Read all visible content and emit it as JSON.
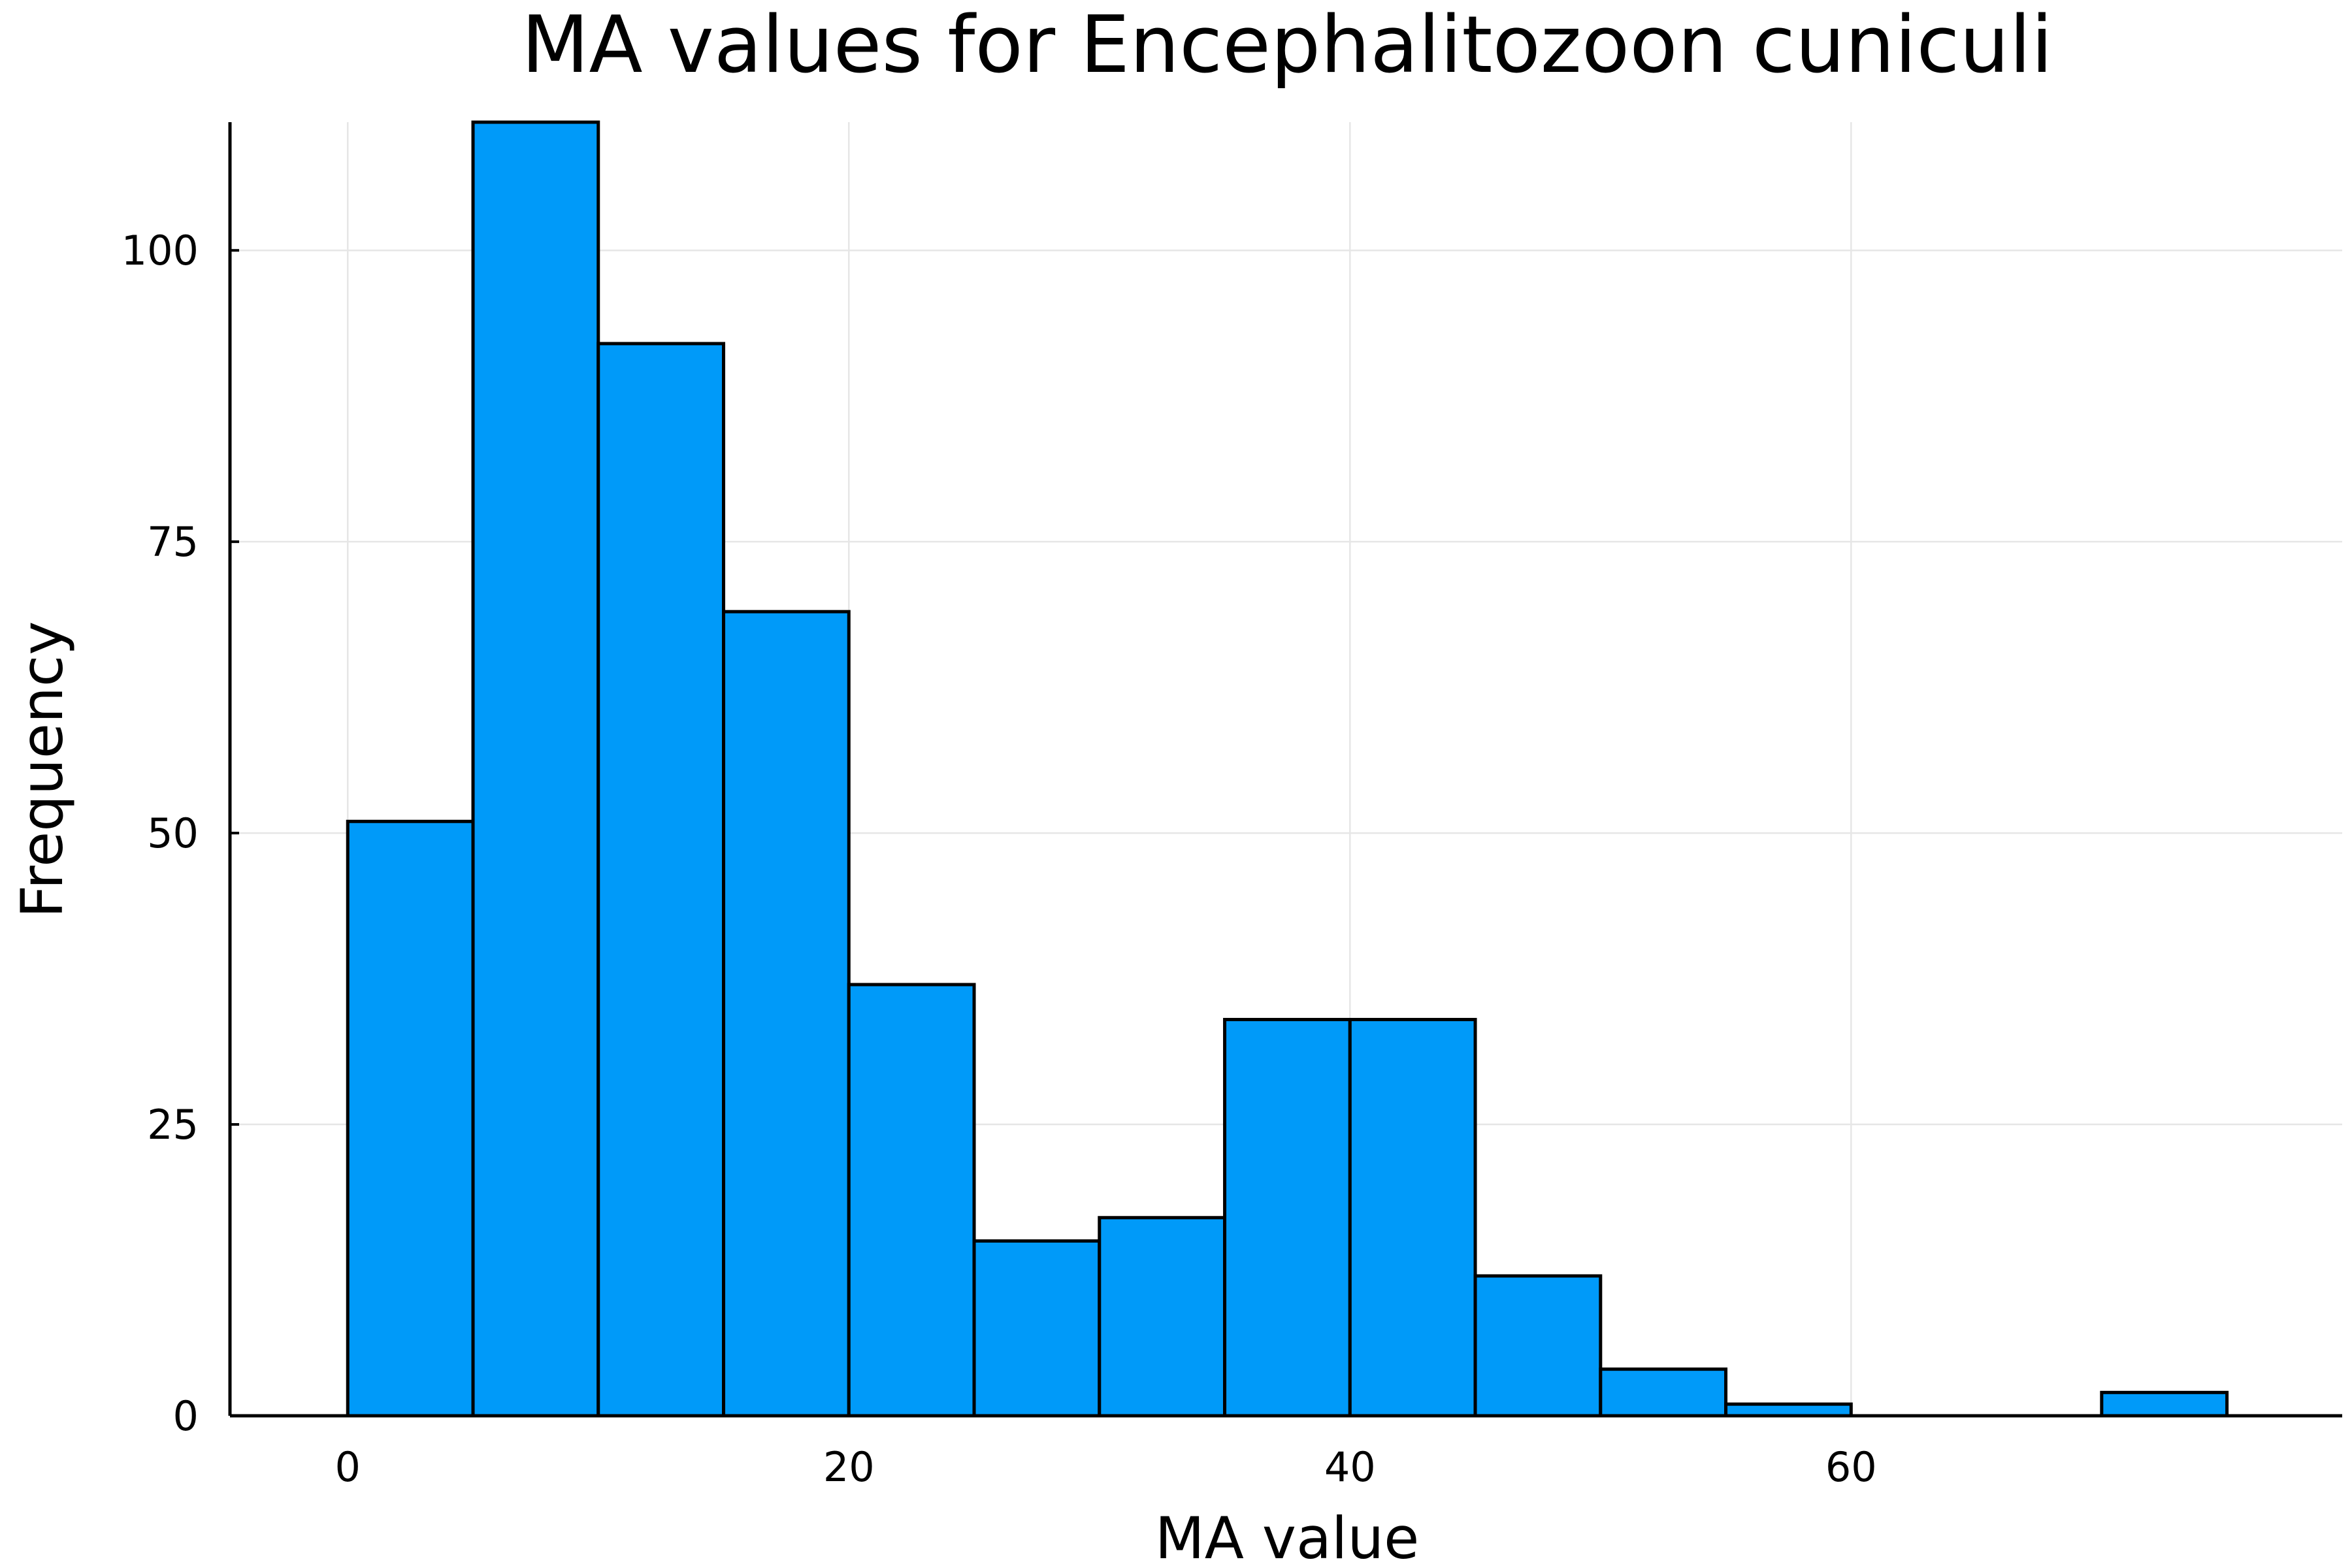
{
  "chart_data": {
    "type": "bar",
    "title": "MA values for Encephalitozoon cuniculi",
    "xlabel": "MA value",
    "ylabel": "Frequency",
    "bin_edges": [
      0,
      5,
      10,
      15,
      20,
      25,
      30,
      35,
      40,
      45,
      50,
      55,
      60,
      65,
      70,
      75
    ],
    "values": [
      51,
      111,
      92,
      69,
      37,
      15,
      17,
      34,
      34,
      12,
      4,
      1,
      0,
      0,
      2
    ],
    "xlim": [
      -4.7,
      79.6
    ],
    "ylim": [
      0,
      111
    ],
    "xticks": [
      0,
      20,
      40,
      60
    ],
    "yticks": [
      0,
      25,
      50,
      75,
      100
    ],
    "grid": true,
    "legend": "none",
    "bar_color": "#009af9",
    "edge_color": "#000000"
  }
}
